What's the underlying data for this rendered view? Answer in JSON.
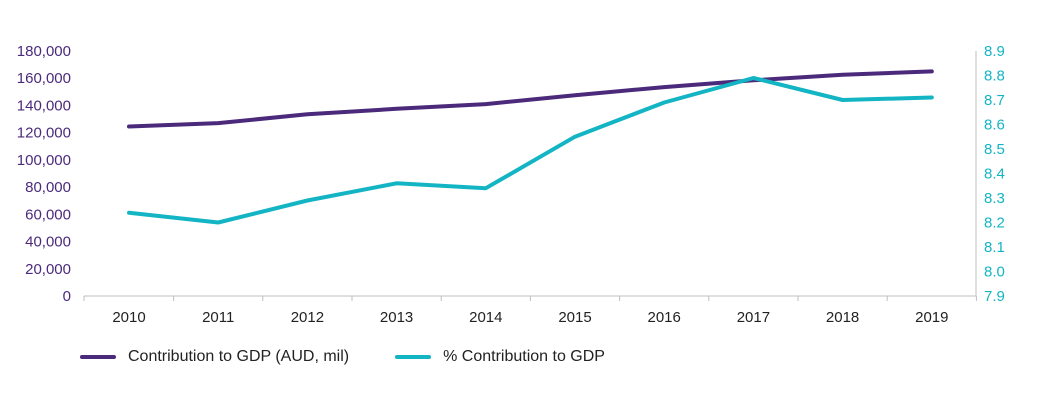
{
  "chart_data": {
    "type": "line",
    "categories": [
      "2010",
      "2011",
      "2012",
      "2013",
      "2014",
      "2015",
      "2016",
      "2017",
      "2018",
      "2019"
    ],
    "series": [
      {
        "name": "Contribution to GDP (AUD, mil)",
        "axis": "left",
        "color": "#4b2a7b",
        "values": [
          124500,
          127000,
          133500,
          137500,
          141000,
          147500,
          153500,
          158500,
          162500,
          165000
        ]
      },
      {
        "name": "% Contribution to GDP",
        "axis": "right",
        "color": "#13b5c4",
        "values": [
          8.24,
          8.2,
          8.29,
          8.36,
          8.34,
          8.55,
          8.69,
          8.79,
          8.7,
          8.71
        ]
      }
    ],
    "y_left": {
      "ylim": [
        0,
        180000
      ],
      "ticks": [
        "0",
        "20,000",
        "40,000",
        "60,000",
        "80,000",
        "100,000",
        "120,000",
        "140,000",
        "160,000",
        "180,000"
      ],
      "color": "#4b2a7b"
    },
    "y_right": {
      "ylim": [
        7.9,
        8.9
      ],
      "ticks": [
        "7.9",
        "8.0",
        "8.1",
        "8.2",
        "8.3",
        "8.4",
        "8.5",
        "8.6",
        "8.7",
        "8.8",
        "8.9"
      ],
      "color": "#13b5c4"
    },
    "title": "",
    "xlabel": "",
    "grid": false,
    "legend_position": "bottom-left",
    "axis_line_color": "#bfbfbf"
  }
}
